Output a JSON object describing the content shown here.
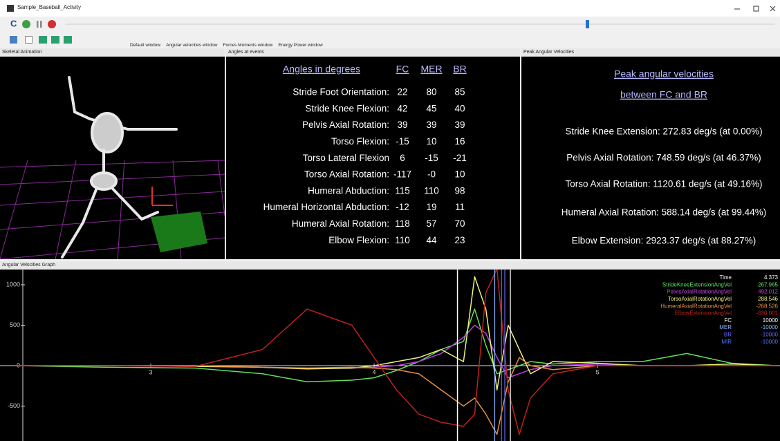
{
  "window": {
    "title": "Sample_Baseball_Activity"
  },
  "toolbar": {
    "buttons": [
      "Default window",
      "Angular velocities window",
      "Forces Moments window",
      "Energy Power window"
    ]
  },
  "panels": {
    "skeletal": {
      "title": "Skeletal Animation"
    },
    "angles": {
      "title": "Angles at events",
      "heading": "Angles in degrees",
      "columns": [
        "FC",
        "MER",
        "BR"
      ],
      "rows": [
        {
          "label": "Stride Foot Orientation:",
          "values": [
            "22",
            "80",
            "85"
          ]
        },
        {
          "label": "Stride Knee Flexion:",
          "values": [
            "42",
            "45",
            "40"
          ]
        },
        {
          "label": "Pelvis Axial Rotation:",
          "values": [
            "39",
            "39",
            "39"
          ]
        },
        {
          "label": "Torso Flexion:",
          "values": [
            "-15",
            "10",
            "16"
          ]
        },
        {
          "label": "Torso Lateral Flexion",
          "values": [
            "6",
            "-15",
            "-21"
          ]
        },
        {
          "label": "Torso Axial Rotation:",
          "values": [
            "-117",
            "-0",
            "10"
          ]
        },
        {
          "label": "Humeral Abduction:",
          "values": [
            "115",
            "110",
            "98"
          ]
        },
        {
          "label": "Humeral Horizontal Abduction:",
          "values": [
            "-12",
            "19",
            "11"
          ]
        },
        {
          "label": "Humeral Axial Rotation:",
          "values": [
            "118",
            "57",
            "70"
          ]
        },
        {
          "label": "Elbow Flexion:",
          "values": [
            "110",
            "44",
            "23"
          ]
        }
      ]
    },
    "peak": {
      "title": "Peak Angular Velocities",
      "heading": [
        "Peak angular velocities",
        "between FC and BR"
      ],
      "items": [
        "Stride Knee Extension: 272.83 deg/s (at 0.00%)",
        "Pelvis Axial Rotation: 748.59 deg/s (at 46.37%)",
        "Torso Axial Rotation: 1120.61 deg/s (at 49.16%)",
        "Humeral Axial Rotation: 588.14 deg/s (at 99.44%)",
        "Elbow Extension: 2923.37 deg/s (at 88.27%)"
      ]
    },
    "graph": {
      "title": "Angular Velocities Graph"
    }
  },
  "graph": {
    "xlim": [
      2.325,
      5.817
    ],
    "ylim": [
      -932,
      1188
    ],
    "xticks": [
      3,
      4,
      5
    ],
    "yticks": [
      1000,
      500,
      0,
      -500
    ],
    "time": {
      "name": "Time",
      "value": 4.373,
      "color": "#ffffff"
    },
    "x": [
      2.4,
      2.8,
      3.2,
      3.5,
      3.7,
      3.9,
      4.0,
      4.1,
      4.2,
      4.3,
      4.4,
      4.45,
      4.5,
      4.55,
      4.6,
      4.65,
      4.7,
      4.8,
      5.0,
      5.2,
      5.4,
      5.6,
      5.8
    ],
    "series": [
      {
        "name": "StrideKneeExtensionAngVel",
        "current": 267.965,
        "color": "#5ee05e",
        "values": [
          0,
          -20,
          -30,
          -100,
          -200,
          -180,
          -150,
          -60,
          50,
          200,
          300,
          700,
          250,
          -100,
          -50,
          0,
          50,
          20,
          50,
          50,
          150,
          30,
          0
        ]
      },
      {
        "name": "PelvisAxialRotationAngVel",
        "current": 492.012,
        "color": "#c040e0",
        "values": [
          0,
          0,
          0,
          -20,
          -30,
          -30,
          -20,
          0,
          50,
          150,
          350,
          500,
          400,
          100,
          -150,
          -100,
          -50,
          0,
          20,
          0,
          0,
          0,
          0
        ]
      },
      {
        "name": "TorsoAxialRotationAngVel",
        "current": 288.546,
        "color": "#f0f080",
        "values": [
          0,
          0,
          -10,
          -20,
          -40,
          -30,
          0,
          50,
          100,
          200,
          50,
          1100,
          700,
          -300,
          500,
          200,
          -100,
          50,
          30,
          0,
          0,
          20,
          0
        ]
      },
      {
        "name": "HumeralAxialRotationAngVel",
        "current": -268.526,
        "color": "#e89040",
        "values": [
          0,
          0,
          0,
          -20,
          -30,
          -20,
          -30,
          -50,
          -100,
          -300,
          -500,
          -400,
          -600,
          -850,
          -200,
          100,
          0,
          -50,
          0,
          0,
          0,
          0,
          0
        ]
      },
      {
        "name": "ElbowExtensionAngVel",
        "current": -630.001,
        "color": "#c02020",
        "values": [
          0,
          0,
          -10,
          200,
          700,
          500,
          100,
          -300,
          -600,
          -700,
          -750,
          -600,
          900,
          1200,
          -300,
          -850,
          -400,
          -100,
          0,
          0,
          0,
          0,
          0
        ]
      }
    ],
    "events": [
      {
        "name": "FC",
        "value": 10000,
        "color": "#ffffff",
        "x": 4.61
      },
      {
        "name": "MER",
        "value": -10000,
        "color": "#8ab4ff",
        "x": 4.54
      },
      {
        "name": "BR",
        "value": -10000,
        "color": "#6a6aff",
        "x": 4.585
      },
      {
        "name": "MIR",
        "value": -10000,
        "color": "#4a7aff",
        "x": 4.57
      }
    ]
  }
}
